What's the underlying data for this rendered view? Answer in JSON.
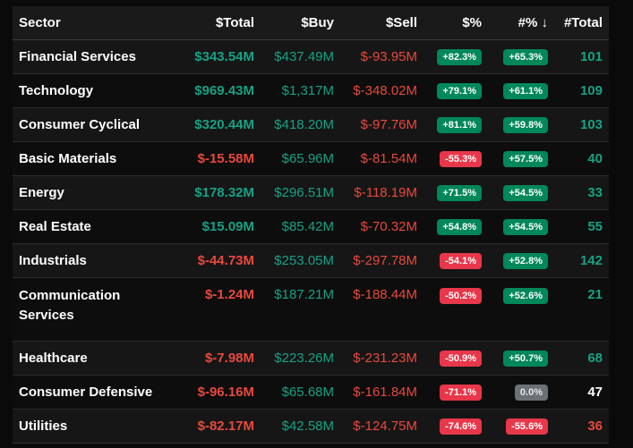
{
  "headers": {
    "sector": "Sector",
    "total": "$Total",
    "buy": "$Buy",
    "sell": "$Sell",
    "dpct": "$%",
    "npct": "#% ↓",
    "ntotal": "#Total"
  },
  "colors": {
    "positive": "#17a184",
    "negative": "#e8493d",
    "badge_positive": "#00875a",
    "badge_negative": "#e8374a",
    "badge_neutral": "#6c7176"
  },
  "rows": [
    {
      "sector": "Financial Services",
      "total": "$343.54M",
      "buy": "$437.49M",
      "sell": "$-93.95M",
      "dpct": "+82.3%",
      "npct": "+65.3%",
      "ntotal": "101",
      "ts": "pos",
      "ds": "pos",
      "ns": "pos"
    },
    {
      "sector": "Technology",
      "total": "$969.43M",
      "buy": "$1,317M",
      "sell": "$-348.02M",
      "dpct": "+79.1%",
      "npct": "+61.1%",
      "ntotal": "109",
      "ts": "pos",
      "ds": "pos",
      "ns": "pos"
    },
    {
      "sector": "Consumer Cyclical",
      "total": "$320.44M",
      "buy": "$418.20M",
      "sell": "$-97.76M",
      "dpct": "+81.1%",
      "npct": "+59.8%",
      "ntotal": "103",
      "ts": "pos",
      "ds": "pos",
      "ns": "pos"
    },
    {
      "sector": "Basic Materials",
      "total": "$-15.58M",
      "buy": "$65.96M",
      "sell": "$-81.54M",
      "dpct": "-55.3%",
      "npct": "+57.5%",
      "ntotal": "40",
      "ts": "neg",
      "ds": "neg",
      "ns": "pos"
    },
    {
      "sector": "Energy",
      "total": "$178.32M",
      "buy": "$296.51M",
      "sell": "$-118.19M",
      "dpct": "+71.5%",
      "npct": "+54.5%",
      "ntotal": "33",
      "ts": "pos",
      "ds": "pos",
      "ns": "pos"
    },
    {
      "sector": "Real Estate",
      "total": "$15.09M",
      "buy": "$85.42M",
      "sell": "$-70.32M",
      "dpct": "+54.8%",
      "npct": "+54.5%",
      "ntotal": "55",
      "ts": "pos",
      "ds": "pos",
      "ns": "pos"
    },
    {
      "sector": "Industrials",
      "total": "$-44.73M",
      "buy": "$253.05M",
      "sell": "$-297.78M",
      "dpct": "-54.1%",
      "npct": "+52.8%",
      "ntotal": "142",
      "ts": "neg",
      "ds": "neg",
      "ns": "pos"
    },
    {
      "sector": "Communication Services",
      "total": "$-1.24M",
      "buy": "$187.21M",
      "sell": "$-188.44M",
      "dpct": "-50.2%",
      "npct": "+52.6%",
      "ntotal": "21",
      "ts": "neg",
      "ds": "neg",
      "ns": "pos"
    },
    {
      "sector": "Healthcare",
      "total": "$-7.98M",
      "buy": "$223.26M",
      "sell": "$-231.23M",
      "dpct": "-50.9%",
      "npct": "+50.7%",
      "ntotal": "68",
      "ts": "neg",
      "ds": "neg",
      "ns": "pos"
    },
    {
      "sector": "Consumer Defensive",
      "total": "$-96.16M",
      "buy": "$65.68M",
      "sell": "$-161.84M",
      "dpct": "-71.1%",
      "npct": "0.0%",
      "ntotal": "47",
      "ts": "neg",
      "ds": "neg",
      "ns": "neu"
    },
    {
      "sector": "Utilities",
      "total": "$-82.17M",
      "buy": "$42.58M",
      "sell": "$-124.75M",
      "dpct": "-74.6%",
      "npct": "-55.6%",
      "ntotal": "36",
      "ts": "neg",
      "ds": "neg",
      "ns": "neg"
    }
  ]
}
